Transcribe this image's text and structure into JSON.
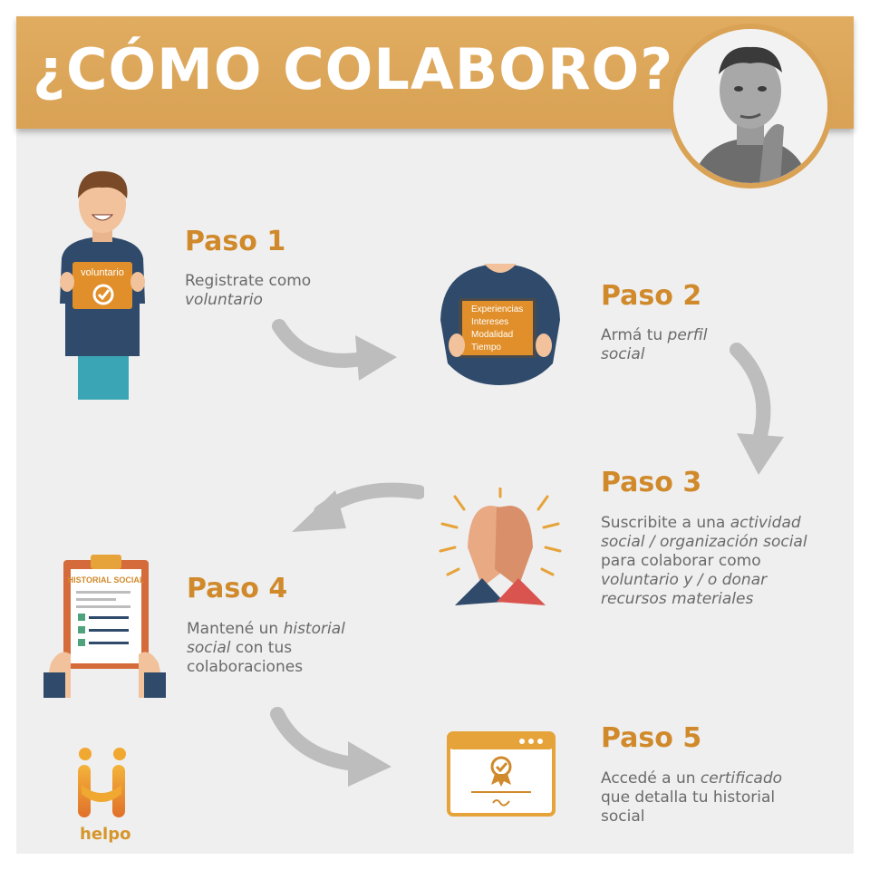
{
  "header": {
    "title": "¿CÓMO COLABORO?"
  },
  "steps": [
    {
      "title": "Paso 1",
      "desc": [
        {
          "t": "Registrate como "
        },
        {
          "t": "voluntario",
          "i": true
        }
      ]
    },
    {
      "title": "Paso 2",
      "desc": [
        {
          "t": "Armá tu "
        },
        {
          "t": "perfil social",
          "i": true
        }
      ]
    },
    {
      "title": "Paso 3",
      "desc": [
        {
          "t": "Suscribite a una "
        },
        {
          "t": "actividad social / organización social",
          "i": true
        },
        {
          "t": " para colaborar como "
        },
        {
          "t": "voluntario y / o donar recursos materiales",
          "i": true
        }
      ]
    },
    {
      "title": "Paso 4",
      "desc": [
        {
          "t": "Mantené un "
        },
        {
          "t": "historial social",
          "i": true
        },
        {
          "t": " con tus colaboraciones"
        }
      ]
    },
    {
      "title": "Paso 5",
      "desc": [
        {
          "t": "Accedé a un "
        },
        {
          "t": "certificado",
          "i": true
        },
        {
          "t": " que detalla tu historial social"
        }
      ]
    }
  ],
  "illustrations": {
    "sign_label": "voluntario",
    "tablet_items": [
      "Experiencias",
      "Intereses",
      "Modalidad",
      "Tiempo"
    ],
    "clipboard_title": "HISTORIAL SOCIAL"
  },
  "logo": {
    "text": "helpo"
  },
  "colors": {
    "accent": "#d9a255",
    "title_orange": "#d08a2b",
    "panel": "#efefef",
    "navy": "#2f4a6b"
  }
}
